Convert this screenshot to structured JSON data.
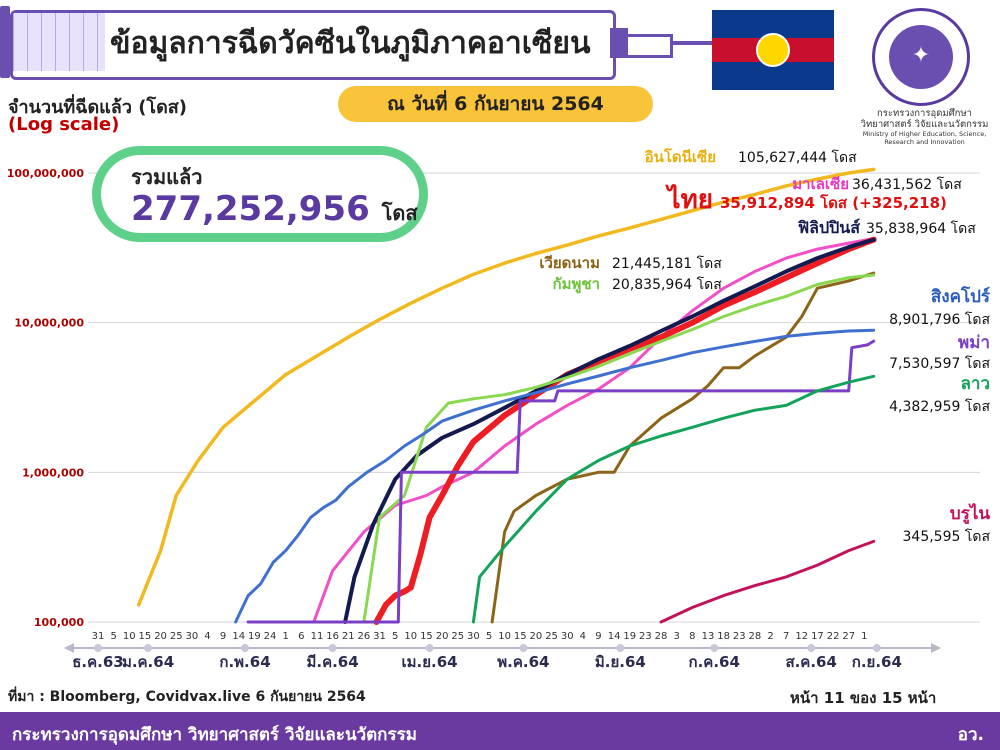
{
  "header": {
    "title": "ข้อมูลการฉีดวัคซีนในภูมิภาคอาเซียน",
    "ylabel_line1": "จำนวนที่ฉีดแล้ว (โดส)",
    "ylabel_line2": "(Log scale)",
    "date": "ณ วันที่ 6 กันยายน 2564",
    "ministry_small_th": "กระทรวงการอุดมศึกษา วิทยาศาสตร์ วิจัยและนวัตกรรม",
    "ministry_small_en": "Ministry of Higher Education, Science, Research and Innovation"
  },
  "total": {
    "label": "รวมแล้ว",
    "value": "277,252,956",
    "unit": "โดส"
  },
  "footer": {
    "source": "ที่มา : Bloomberg, Covidvax.live 6 กันยายน 2564",
    "page": "หน้า 11 ของ 15 หน้า",
    "ministry": "กระทรวงการอุดมศึกษา วิทยาศาสตร์ วิจัยและนวัตกรรม",
    "abbr": "อว."
  },
  "colors": {
    "accent_purple": "#6a3aa0",
    "pill_yellow": "#f9c33a",
    "box_green": "#5fd08a"
  },
  "chart_data": {
    "type": "line",
    "ylabel": "จำนวนที่ฉีดแล้ว (โดส)",
    "yscale": "log",
    "ylim": [
      100000,
      100000000
    ],
    "yticks": [
      100000,
      1000000,
      10000000,
      100000000
    ],
    "ytick_labels": [
      "100,000",
      "1,000,000",
      "10,000,000",
      "100,000,000"
    ],
    "xlim": [
      0,
      250
    ],
    "x_unit": "day index starting 31 Dec 2020",
    "day_ticks": [
      {
        "x": 0,
        "label": "31"
      },
      {
        "x": 5,
        "label": "5"
      },
      {
        "x": 10,
        "label": "10"
      },
      {
        "x": 15,
        "label": "15"
      },
      {
        "x": 20,
        "label": "20"
      },
      {
        "x": 25,
        "label": "25"
      },
      {
        "x": 30,
        "label": "30"
      },
      {
        "x": 35,
        "label": "4"
      },
      {
        "x": 40,
        "label": "9"
      },
      {
        "x": 45,
        "label": "14"
      },
      {
        "x": 50,
        "label": "19"
      },
      {
        "x": 55,
        "label": "24"
      },
      {
        "x": 60,
        "label": "1"
      },
      {
        "x": 65,
        "label": "6"
      },
      {
        "x": 70,
        "label": "11"
      },
      {
        "x": 75,
        "label": "16"
      },
      {
        "x": 80,
        "label": "21"
      },
      {
        "x": 85,
        "label": "26"
      },
      {
        "x": 90,
        "label": "31"
      },
      {
        "x": 95,
        "label": "5"
      },
      {
        "x": 100,
        "label": "10"
      },
      {
        "x": 105,
        "label": "15"
      },
      {
        "x": 110,
        "label": "20"
      },
      {
        "x": 115,
        "label": "25"
      },
      {
        "x": 120,
        "label": "30"
      },
      {
        "x": 125,
        "label": "5"
      },
      {
        "x": 130,
        "label": "10"
      },
      {
        "x": 135,
        "label": "15"
      },
      {
        "x": 140,
        "label": "20"
      },
      {
        "x": 145,
        "label": "25"
      },
      {
        "x": 150,
        "label": "30"
      },
      {
        "x": 155,
        "label": "4"
      },
      {
        "x": 160,
        "label": "9"
      },
      {
        "x": 165,
        "label": "14"
      },
      {
        "x": 170,
        "label": "19"
      },
      {
        "x": 175,
        "label": "23"
      },
      {
        "x": 180,
        "label": "28"
      },
      {
        "x": 185,
        "label": "3"
      },
      {
        "x": 190,
        "label": "8"
      },
      {
        "x": 195,
        "label": "13"
      },
      {
        "x": 200,
        "label": "18"
      },
      {
        "x": 205,
        "label": "23"
      },
      {
        "x": 210,
        "label": "28"
      },
      {
        "x": 215,
        "label": "2"
      },
      {
        "x": 220,
        "label": "7"
      },
      {
        "x": 225,
        "label": "12"
      },
      {
        "x": 230,
        "label": "17"
      },
      {
        "x": 235,
        "label": "22"
      },
      {
        "x": 240,
        "label": "27"
      },
      {
        "x": 245,
        "label": "1"
      }
    ],
    "month_ticks": [
      {
        "x": 0,
        "label": "ธ.ค.63"
      },
      {
        "x": 16,
        "label": "ม.ค.64"
      },
      {
        "x": 47,
        "label": "ก.พ.64"
      },
      {
        "x": 75,
        "label": "มี.ค.64"
      },
      {
        "x": 106,
        "label": "เม.ย.64"
      },
      {
        "x": 136,
        "label": "พ.ค.64"
      },
      {
        "x": 167,
        "label": "มิ.ย.64"
      },
      {
        "x": 197,
        "label": "ก.ค.64"
      },
      {
        "x": 228,
        "label": "ส.ค.64"
      },
      {
        "x": 249,
        "label": "ก.ย.64"
      }
    ],
    "series": [
      {
        "name": "อินโดนีเซีย",
        "value_label": "105,627,444 โดส",
        "color": "#f2b91e",
        "x": [
          13,
          20,
          25,
          32,
          40,
          50,
          60,
          70,
          80,
          90,
          100,
          110,
          120,
          130,
          140,
          150,
          160,
          170,
          180,
          190,
          200,
          210,
          220,
          230,
          240,
          248
        ],
        "y": [
          130000,
          300000,
          700000,
          1200000,
          2000000,
          3000000,
          4500000,
          6000000,
          8000000,
          10500000,
          13500000,
          17000000,
          21000000,
          25000000,
          29000000,
          33000000,
          38000000,
          43000000,
          49000000,
          56000000,
          64000000,
          72000000,
          82000000,
          91000000,
          100000000,
          105627444
        ]
      },
      {
        "name": "มาเลเซีย",
        "value_label": "36,431,562 โดส",
        "color": "#f04fc8",
        "x": [
          69,
          75,
          85,
          95,
          105,
          110,
          120,
          130,
          140,
          150,
          160,
          170,
          180,
          190,
          200,
          210,
          220,
          230,
          240,
          248
        ],
        "y": [
          100000,
          220000,
          400000,
          600000,
          700000,
          800000,
          1000000,
          1500000,
          2100000,
          2800000,
          3600000,
          5000000,
          8000000,
          12000000,
          17000000,
          22000000,
          27000000,
          31000000,
          34000000,
          36431562
        ]
      },
      {
        "name": "ไทย",
        "value_label": "35,912,894 โดส (+325,218)",
        "color": "#ee1d23",
        "x": [
          89,
          92,
          95,
          98,
          100,
          103,
          106,
          110,
          115,
          120,
          130,
          140,
          150,
          160,
          170,
          180,
          190,
          200,
          210,
          220,
          230,
          240,
          248
        ],
        "y": [
          100000,
          130000,
          150000,
          160000,
          170000,
          280000,
          500000,
          700000,
          1100000,
          1600000,
          2400000,
          3300000,
          4500000,
          5500000,
          6700000,
          8000000,
          10000000,
          13000000,
          16000000,
          20000000,
          25000000,
          31000000,
          35912894
        ]
      },
      {
        "name": "ฟิลิปปินส์",
        "value_label": "35,838,964 โดส",
        "color": "#121a4f",
        "x": [
          79,
          82,
          88,
          95,
          102,
          110,
          120,
          130,
          140,
          150,
          160,
          170,
          180,
          190,
          200,
          210,
          220,
          230,
          240,
          248
        ],
        "y": [
          100000,
          200000,
          450000,
          900000,
          1300000,
          1700000,
          2100000,
          2700000,
          3500000,
          4500000,
          5700000,
          7000000,
          8800000,
          11000000,
          14000000,
          17500000,
          22000000,
          27000000,
          32000000,
          35838964
        ]
      },
      {
        "name": "เวียดนาม",
        "value_label": "21,445,181 โดส",
        "color": "#8c6418",
        "x": [
          126,
          130,
          133,
          140,
          150,
          160,
          165,
          170,
          180,
          190,
          195,
          200,
          205,
          210,
          220,
          225,
          230,
          240,
          248
        ],
        "y": [
          100000,
          400000,
          550000,
          700000,
          900000,
          1000000,
          1000000,
          1500000,
          2300000,
          3100000,
          3800000,
          5000000,
          5000000,
          6000000,
          8000000,
          11000000,
          17000000,
          19000000,
          21445181
        ]
      },
      {
        "name": "กัมพูชา",
        "value_label": "20,835,964 โดส",
        "color": "#8ad850",
        "x": [
          85,
          90,
          98,
          105,
          112,
          120,
          130,
          140,
          150,
          160,
          170,
          180,
          190,
          200,
          210,
          220,
          230,
          240,
          248
        ],
        "y": [
          100000,
          500000,
          700000,
          2000000,
          2900000,
          3100000,
          3300000,
          3700000,
          4300000,
          5100000,
          6200000,
          7500000,
          9000000,
          11000000,
          13000000,
          15000000,
          18000000,
          20000000,
          20835964
        ]
      },
      {
        "name": "สิงคโปร์",
        "value_label": "8,901,796 โดส",
        "color": "#3f6fcf",
        "x": [
          44,
          48,
          52,
          56,
          60,
          64,
          68,
          72,
          76,
          80,
          86,
          92,
          98,
          104,
          110,
          120,
          130,
          140,
          150,
          160,
          170,
          180,
          190,
          200,
          210,
          220,
          230,
          240,
          248
        ],
        "y": [
          100000,
          150000,
          180000,
          250000,
          300000,
          380000,
          500000,
          580000,
          650000,
          800000,
          1000000,
          1200000,
          1500000,
          1800000,
          2200000,
          2600000,
          3000000,
          3400000,
          3900000,
          4400000,
          5000000,
          5600000,
          6300000,
          6900000,
          7500000,
          8100000,
          8500000,
          8800000,
          8901796
        ]
      },
      {
        "name": "พม่า",
        "value_label": "7,530,597 โดส",
        "color": "#7b3fc6",
        "x": [
          48,
          96,
          97,
          134,
          135,
          146,
          147,
          240,
          241,
          246,
          248
        ],
        "y": [
          100000,
          100000,
          1000000,
          1000000,
          3000000,
          3000000,
          3500000,
          3500000,
          6800000,
          7100000,
          7530597
        ]
      },
      {
        "name": "ลาว",
        "value_label": "4,382,959 โดส",
        "color": "#13a35a",
        "x": [
          120,
          122,
          130,
          140,
          150,
          160,
          170,
          180,
          190,
          200,
          210,
          220,
          230,
          240,
          248
        ],
        "y": [
          100000,
          200000,
          320000,
          550000,
          900000,
          1200000,
          1500000,
          1750000,
          2000000,
          2300000,
          2600000,
          2800000,
          3500000,
          4000000,
          4382959
        ]
      },
      {
        "name": "บรูไน",
        "value_label": "345,595 โดส",
        "color": "#c0135a",
        "x": [
          180,
          190,
          200,
          210,
          220,
          230,
          240,
          248
        ],
        "y": [
          100000,
          125000,
          150000,
          175000,
          200000,
          240000,
          300000,
          345595
        ]
      }
    ]
  }
}
